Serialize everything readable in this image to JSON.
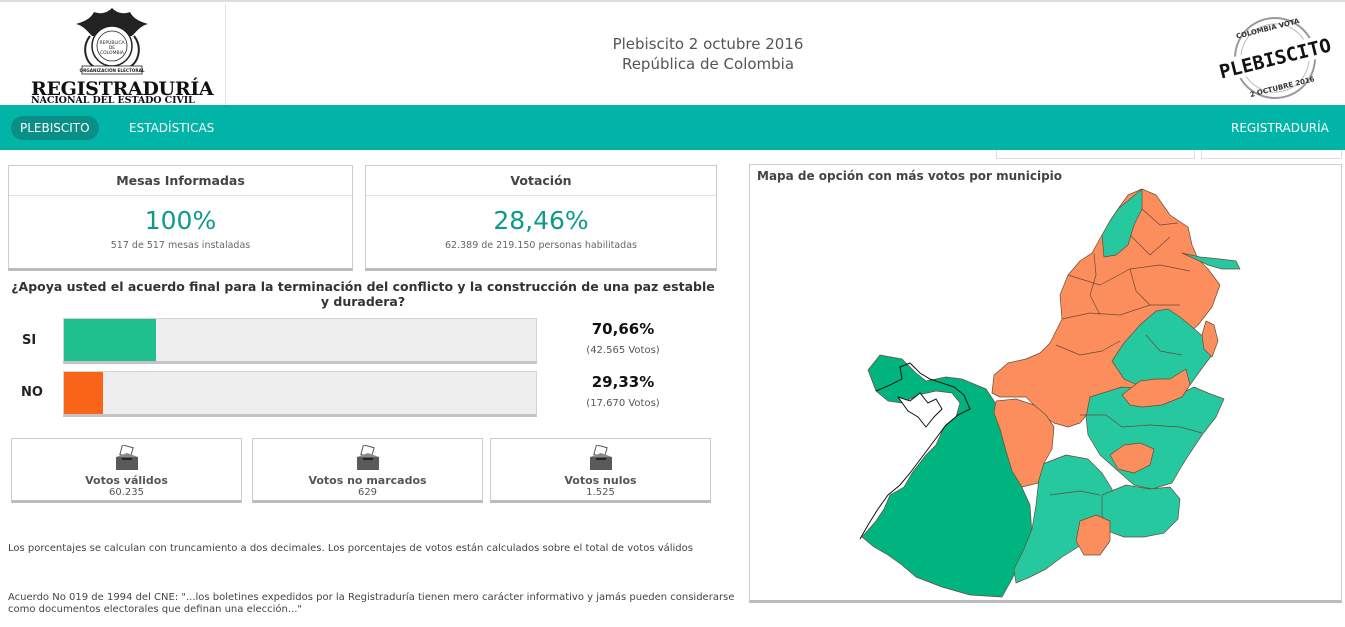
{
  "header": {
    "logo_title": "REGISTRADURÍA",
    "logo_subtitle": "NACIONAL DEL ESTADO CIVIL",
    "seal_text_1": "REPÚBLICA",
    "seal_text_2": "DE",
    "seal_text_3": "COLOMBIA",
    "seal_text_4": "ORGANIZACIÓN ELECTORAL",
    "title_line1": "Plebiscito 2 octubre 2016",
    "title_line2": "República de Colombia",
    "stamp_top": "COLOMBIA VOTA",
    "stamp_main": "PLEBISCITO",
    "stamp_bottom": "2 OCTUBRE 2016"
  },
  "nav": {
    "plebiscito": "PLEBISCITO",
    "estadisticas": "ESTADÍSTICAS",
    "registraduria": "REGISTRADURÍA"
  },
  "mesas": {
    "title": "Mesas Informadas",
    "percent": "100%",
    "detail": "517 de 517 mesas instaladas"
  },
  "votacion": {
    "title": "Votación",
    "percent": "28,46%",
    "detail": "62.389 de 219.150 personas habilitadas"
  },
  "question": "¿Apoya usted el acuerdo final para la terminación del conflicto y la construcción de una paz estable y duradera?",
  "options": [
    {
      "label": "SI",
      "percent": "70,66%",
      "votes": "(42.565 Votos)",
      "bar_fraction": 0.195,
      "color": "#1fbf8e"
    },
    {
      "label": "NO",
      "percent": "29,33%",
      "votes": "(17.670 Votos)",
      "bar_fraction": 0.082,
      "color": "#fa6418"
    }
  ],
  "cards": [
    {
      "label": "Votos válidos",
      "value": "60.235"
    },
    {
      "label": "Votos no marcados",
      "value": "629"
    },
    {
      "label": "Votos nulos",
      "value": "1.525"
    }
  ],
  "notes": {
    "note1": "Los porcentajes se calculan con truncamiento a dos decimales. Los porcentajes de votos están calculados sobre el total de votos válidos",
    "note2": "Acuerdo No 019 de 1994 del CNE: \"...los boletines expedidos por la Registraduría tienen mero carácter informativo y jamás pueden considerarse como documentos electorales que definan una elección...\""
  },
  "map": {
    "title": "Mapa de opción con más votos por municipio",
    "colors": {
      "si_dark": "#00b480",
      "si": "#26c99f",
      "no": "#fb8e5c",
      "border": "#7a4a33"
    }
  }
}
